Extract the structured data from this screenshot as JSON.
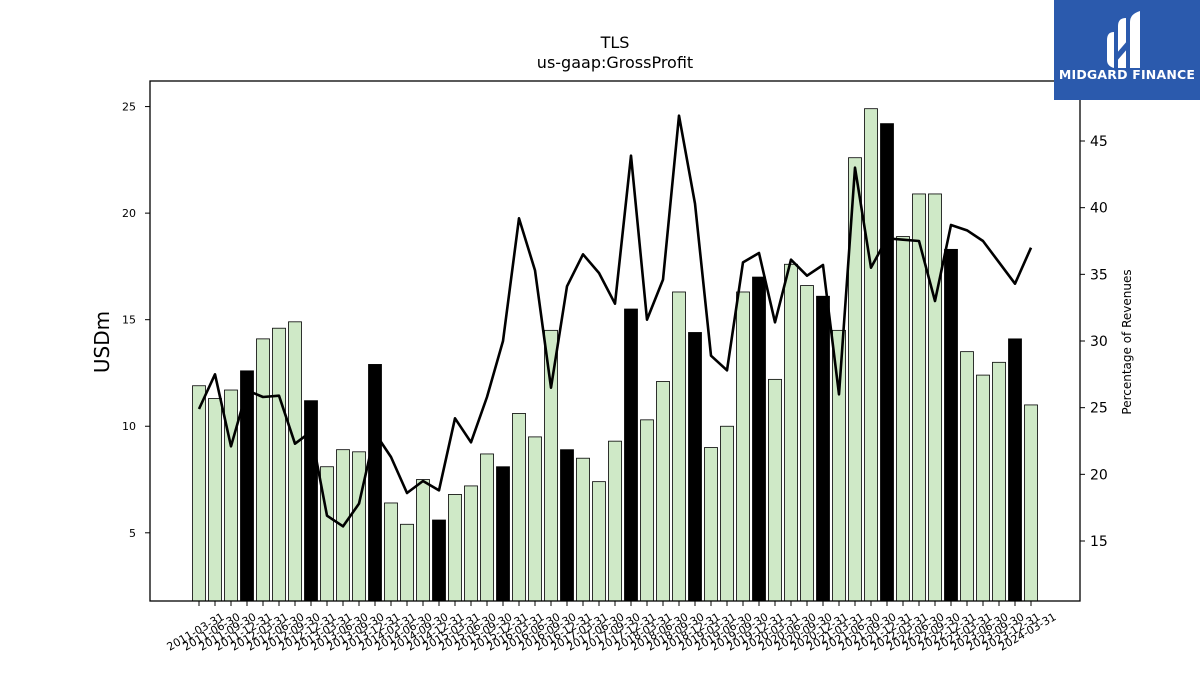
{
  "chart_data": {
    "type": "bar",
    "title": "TLS",
    "subtitle": "us-gaap:GrossProfit",
    "ylabel": "USDm",
    "y2label": "Percentage of Revenues",
    "ylim": [
      1.8,
      26.2
    ],
    "y2lim": [
      10.5,
      49.5
    ],
    "yticks": [
      5,
      10,
      15,
      20,
      25
    ],
    "y2ticks": [
      15,
      20,
      25,
      30,
      35,
      40,
      45
    ],
    "grid": false,
    "categories": [
      "2011-03-31",
      "2011-06-30",
      "2011-09-30",
      "2011-12-31",
      "2012-03-31",
      "2012-06-30",
      "2012-09-30",
      "2012-12-31",
      "2013-03-31",
      "2013-06-30",
      "2013-09-30",
      "2013-12-31",
      "2014-03-31",
      "2014-06-30",
      "2014-09-30",
      "2014-12-31",
      "2015-03-31",
      "2015-06-30",
      "2015-09-30",
      "2015-12-31",
      "2016-03-31",
      "2016-06-30",
      "2016-09-30",
      "2016-12-31",
      "2017-03-31",
      "2017-06-30",
      "2017-09-30",
      "2017-12-31",
      "2018-03-31",
      "2018-06-30",
      "2018-09-30",
      "2018-12-31",
      "2019-03-31",
      "2019-06-30",
      "2019-09-30",
      "2019-12-31",
      "2020-03-31",
      "2020-06-30",
      "2020-09-30",
      "2020-12-31",
      "2021-03-31",
      "2021-06-30",
      "2021-09-30",
      "2021-12-31",
      "2022-03-31",
      "2022-06-30",
      "2022-09-30",
      "2022-12-31",
      "2023-03-31",
      "2023-06-30",
      "2023-09-30",
      "2023-12-31",
      "2024-03-31"
    ],
    "series": [
      {
        "type": "bar",
        "axis": "left",
        "values": [
          11.9,
          11.3,
          11.7,
          12.6,
          14.1,
          14.6,
          14.9,
          11.2,
          8.1,
          8.9,
          8.8,
          12.9,
          6.4,
          5.4,
          7.5,
          5.6,
          6.8,
          7.2,
          8.7,
          8.1,
          10.6,
          9.5,
          14.5,
          8.9,
          8.5,
          7.4,
          9.3,
          15.5,
          10.3,
          12.1,
          16.3,
          14.4,
          9.0,
          10.0,
          16.3,
          17.0,
          12.2,
          17.6,
          16.6,
          16.1,
          14.5,
          22.6,
          24.9,
          24.2,
          18.9,
          20.9,
          20.9,
          18.3,
          13.5,
          12.4,
          13.0,
          14.1,
          11.0
        ],
        "highlight": [
          false,
          false,
          false,
          true,
          false,
          false,
          false,
          true,
          false,
          false,
          false,
          true,
          false,
          false,
          false,
          true,
          false,
          false,
          false,
          true,
          false,
          false,
          false,
          true,
          false,
          false,
          false,
          true,
          false,
          false,
          false,
          true,
          false,
          false,
          false,
          true,
          false,
          false,
          false,
          true,
          false,
          false,
          false,
          true,
          false,
          false,
          false,
          true,
          false,
          false,
          false,
          true,
          false
        ],
        "color": "#cfe9c7",
        "highlight_color": "#000000"
      },
      {
        "type": "line",
        "axis": "right",
        "values": [
          24.9,
          27.5,
          22.1,
          26.3,
          25.8,
          25.9,
          22.3,
          23.2,
          16.9,
          16.1,
          17.8,
          23.1,
          21.3,
          18.6,
          19.5,
          18.8,
          24.2,
          22.4,
          25.8,
          30.0,
          39.2,
          35.3,
          26.5,
          34.1,
          36.5,
          35.1,
          32.8,
          43.9,
          31.6,
          34.6,
          46.9,
          40.3,
          28.9,
          27.8,
          35.9,
          36.6,
          31.4,
          36.1,
          34.9,
          35.7,
          26.0,
          43.0,
          35.5,
          37.7,
          37.6,
          37.5,
          33.0,
          38.7,
          38.3,
          37.5,
          35.9,
          34.3,
          37.0
        ],
        "color": "#000000"
      }
    ]
  },
  "logo": {
    "text": "MIDGARD FINANCE",
    "icon": "mf-logo-icon"
  }
}
